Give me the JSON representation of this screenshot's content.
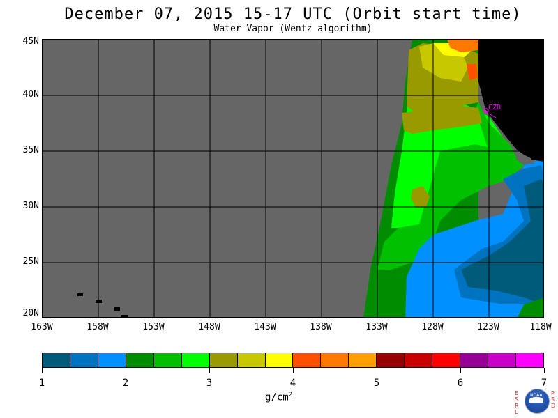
{
  "header": {
    "title": "December 07, 2015  15-17 UTC  (Orbit start time)",
    "subtitle": "Water Vapor (Wentz algorithm)"
  },
  "map": {
    "extent": {
      "lon_min": -163,
      "lon_max": -118,
      "lat_min": 20,
      "lat_max": 45
    },
    "lat_labels": [
      "45N",
      "40N",
      "35N",
      "30N",
      "25N",
      "20N"
    ],
    "lon_labels": [
      "163W",
      "158W",
      "153W",
      "148W",
      "143W",
      "138W",
      "133W",
      "128W",
      "123W",
      "118W"
    ],
    "station_label": "CZD",
    "colors": {
      "no_data": "#666666",
      "land": "#000000",
      "grid": "#000000",
      "station": "#ff00ff"
    }
  },
  "colorbar": {
    "colors": [
      "#005a7a",
      "#0073c0",
      "#0090ff",
      "#008c00",
      "#00c000",
      "#00ff00",
      "#999900",
      "#c8c800",
      "#ffff00",
      "#ff5000",
      "#ff7800",
      "#ffa000",
      "#960000",
      "#c80000",
      "#ff0000",
      "#960096",
      "#c800c8",
      "#ff00ff"
    ],
    "ticks": [
      "1",
      "2",
      "3",
      "4",
      "5",
      "6",
      "7"
    ],
    "units": "g/cm",
    "units_sup": "2"
  },
  "logo": {
    "left_letters": "E S R L",
    "right_letters": "P S D",
    "name": "NOAA"
  }
}
